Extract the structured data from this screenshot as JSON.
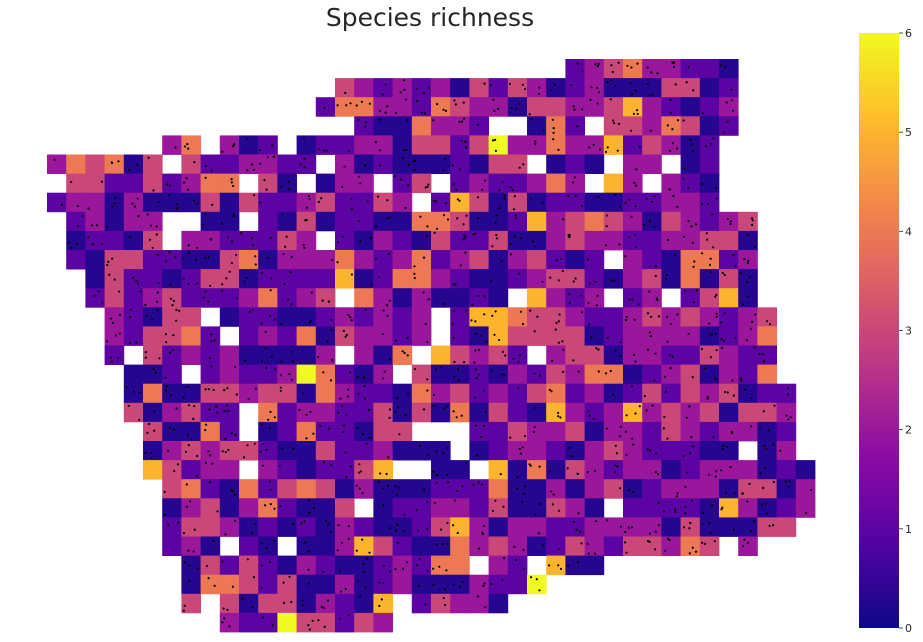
{
  "chart_data": {
    "type": "heatmap",
    "title": "Species richness",
    "colorbar": {
      "min": 0,
      "max": 6,
      "ticks": [
        "0",
        "1",
        "2",
        "3",
        "4",
        "5",
        "6"
      ],
      "colormap": "plasma",
      "stops": [
        "#0d0887",
        "#5302a3",
        "#8b0aa5",
        "#b83289",
        "#db5c68",
        "#f48849",
        "#febd2a",
        "#f0f921"
      ]
    },
    "grid": false,
    "legend_position": "right",
    "point_color": "#000000",
    "cell_grid": {
      "columns": 40,
      "rows": 30,
      "row_spans": [
        [
          27,
          35
        ],
        [
          15,
          35
        ],
        [
          14,
          35
        ],
        [
          15,
          35
        ],
        [
          6,
          34
        ],
        [
          0,
          34
        ],
        [
          0,
          34
        ],
        [
          0,
          35
        ],
        [
          1,
          36
        ],
        [
          1,
          36
        ],
        [
          1,
          36
        ],
        [
          2,
          36
        ],
        [
          2,
          36
        ],
        [
          3,
          37
        ],
        [
          3,
          37
        ],
        [
          3,
          37
        ],
        [
          4,
          37
        ],
        [
          4,
          38
        ],
        [
          4,
          38
        ],
        [
          5,
          38
        ],
        [
          5,
          38
        ],
        [
          5,
          39
        ],
        [
          6,
          39
        ],
        [
          6,
          39
        ],
        [
          6,
          38
        ],
        [
          6,
          36
        ],
        [
          7,
          28
        ],
        [
          7,
          25
        ],
        [
          7,
          23
        ],
        [
          8,
          17
        ]
      ],
      "value_note": "richness levels 0–6 per grid cell; white cells have no records"
    }
  }
}
